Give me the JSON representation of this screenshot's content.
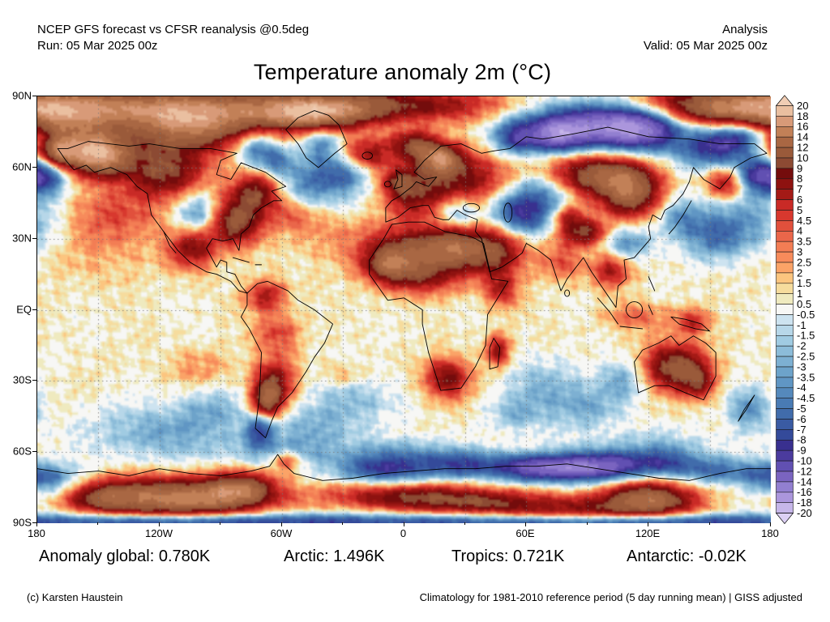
{
  "header": {
    "left_line1": "NCEP GFS forecast vs CFSR reanalysis @0.5deg",
    "left_line2": "Run: 05 Mar 2025 00z",
    "right_line1": "Analysis",
    "right_line2": "Valid: 05 Mar 2025 00z"
  },
  "title": "Temperature anomaly 2m (°C)",
  "stats": [
    "Anomaly global: 0.780K",
    "Arctic: 1.496K",
    "Tropics: 0.721K",
    "Antarctic: -0.02K"
  ],
  "footer": {
    "credit": "(c) Karsten Haustein",
    "note": "Climatology for 1981-2010 reference period (5 day running mean) | GISS adjusted"
  },
  "axes": {
    "x_ticks": [
      "180",
      "120W",
      "60W",
      "0",
      "60E",
      "120E",
      "180"
    ],
    "y_ticks": [
      "90N",
      "60N",
      "30N",
      "EQ",
      "30S",
      "60S",
      "90S"
    ]
  },
  "colorbar": {
    "tick_labels": [
      "20",
      "18",
      "16",
      "14",
      "12",
      "10",
      "9",
      "8",
      "7",
      "6",
      "5",
      "4.5",
      "4",
      "3.5",
      "3",
      "2.5",
      "2",
      "1.5",
      "1",
      "0.5",
      "-0.5",
      "-1",
      "-1.5",
      "-2",
      "-2.5",
      "-3",
      "-3.5",
      "-4",
      "-4.5",
      "-5",
      "-6",
      "-7",
      "-8",
      "-9",
      "-10",
      "-12",
      "-14",
      "-16",
      "-18",
      "-20"
    ]
  },
  "chart_data": {
    "type": "heatmap",
    "title": "Temperature anomaly 2m (°C)",
    "subtitle_model": "NCEP GFS forecast vs CFSR reanalysis @0.5deg",
    "run": "05 Mar 2025 00z",
    "valid": "05 Mar 2025 00z",
    "mode": "Analysis",
    "unit": "°C",
    "projection": "equirectangular",
    "lon_range": [
      -180,
      180
    ],
    "lat_range": [
      -90,
      90
    ],
    "x_tick_labels": [
      "180",
      "120W",
      "60W",
      "0",
      "60E",
      "120E",
      "180"
    ],
    "y_tick_labels": [
      "90N",
      "60N",
      "30N",
      "EQ",
      "30S",
      "60S",
      "90S"
    ],
    "grid": "dotted 30-degree graticule",
    "legend_position": "right colorbar with out-of-range arrows",
    "summary_stats": {
      "global_anomaly_K": 0.78,
      "arctic_anomaly_K": 1.496,
      "tropics_anomaly_K": 0.721,
      "antarctic_anomaly_K": -0.02,
      "climatology": "1981-2010 reference period (5 day running mean), GISS adjusted"
    },
    "levels": [
      -20,
      -18,
      -16,
      -14,
      -12,
      -10,
      -9,
      -8,
      -7,
      -6,
      -5,
      -4.5,
      -4,
      -3.5,
      -3,
      -2.5,
      -2,
      -1.5,
      -1,
      -0.5,
      0.5,
      1,
      1.5,
      2,
      2.5,
      3,
      3.5,
      4,
      4.5,
      5,
      6,
      7,
      8,
      9,
      10,
      12,
      14,
      16,
      18,
      20
    ],
    "colors": [
      "#dcd0f4",
      "#c6b6e9",
      "#ab96dc",
      "#927fd0",
      "#7a64c0",
      "#6150b2",
      "#4b3b9e",
      "#39308f",
      "#344a9a",
      "#3a5ba3",
      "#416cab",
      "#497bb4",
      "#5589bc",
      "#6096c4",
      "#6da3ca",
      "#7db0d2",
      "#8cbcd9",
      "#a0cbe2",
      "#b7d7e9",
      "#cde3f0",
      "#f7f7f5",
      "#efeabf",
      "#f6dc9d",
      "#fcc57f",
      "#fba367",
      "#f78b5b",
      "#f37d54",
      "#ea664a",
      "#e1503c",
      "#d8382e",
      "#c92a26",
      "#a41a16",
      "#8e1210",
      "#740c0c",
      "#8c4a33",
      "#9a5a3a",
      "#a96743",
      "#c28057",
      "#d89a78",
      "#eabfa0",
      "#f0cdb4"
    ],
    "base_anomaly": 0.6,
    "approx_field_blobs": [
      [
        -160,
        86,
        45,
        6,
        9
      ],
      [
        -80,
        86,
        45,
        6,
        8
      ],
      [
        0,
        87,
        35,
        5,
        7
      ],
      [
        160,
        86,
        35,
        6,
        9
      ],
      [
        -165,
        70,
        16,
        8,
        12
      ],
      [
        -148,
        65,
        10,
        6,
        11
      ],
      [
        -105,
        77,
        22,
        7,
        11
      ],
      [
        -117,
        59,
        14,
        8,
        9
      ],
      [
        -45,
        83,
        18,
        5,
        11
      ],
      [
        -170,
        66,
        6,
        4,
        6
      ],
      [
        -178,
        57,
        9,
        6,
        -10
      ],
      [
        173,
        58,
        8,
        5,
        -6
      ],
      [
        152,
        68,
        12,
        6,
        -8
      ],
      [
        167,
        73,
        12,
        5,
        -8
      ],
      [
        95,
        78,
        22,
        7,
        -15
      ],
      [
        75,
        74,
        9,
        5,
        -9
      ],
      [
        118,
        77,
        13,
        6,
        -10
      ],
      [
        55,
        73,
        8,
        5,
        -8
      ],
      [
        -73,
        68,
        7,
        5,
        -6
      ],
      [
        -63,
        63,
        5,
        4,
        -4
      ],
      [
        -45,
        54,
        16,
        8,
        -5
      ],
      [
        -30,
        58,
        9,
        5,
        -4
      ],
      [
        -41,
        71,
        6,
        5,
        -5
      ],
      [
        -102,
        41,
        8,
        6,
        -5.5
      ],
      [
        -83,
        37,
        9,
        7,
        10
      ],
      [
        -72,
        50,
        9,
        6,
        9
      ],
      [
        -104,
        26,
        8,
        6,
        7
      ],
      [
        -142,
        40,
        20,
        9,
        3.5
      ],
      [
        -150,
        22,
        22,
        9,
        1.2
      ],
      [
        -55,
        40,
        10,
        5,
        3
      ],
      [
        -35,
        32,
        14,
        8,
        2
      ],
      [
        15,
        58,
        15,
        9,
        5.5
      ],
      [
        35,
        55,
        14,
        8,
        5
      ],
      [
        5,
        47,
        10,
        6,
        5
      ],
      [
        18,
        64,
        7,
        4,
        10
      ],
      [
        -18,
        66,
        8,
        5,
        7
      ],
      [
        5,
        70,
        8,
        4,
        8
      ],
      [
        -3,
        54,
        6,
        4,
        6
      ],
      [
        27,
        41,
        8,
        5,
        -4.5
      ],
      [
        52,
        43,
        7,
        5,
        -5
      ],
      [
        67,
        48,
        10,
        7,
        -7
      ],
      [
        60,
        38,
        8,
        5,
        -5
      ],
      [
        5,
        24,
        16,
        8,
        10
      ],
      [
        -8,
        19,
        8,
        5,
        7
      ],
      [
        25,
        27,
        10,
        6,
        8
      ],
      [
        45,
        24,
        10,
        7,
        9
      ],
      [
        10,
        13,
        14,
        5,
        4
      ],
      [
        48,
        8,
        6,
        5,
        5
      ],
      [
        90,
        58,
        15,
        7,
        9
      ],
      [
        110,
        55,
        12,
        6,
        8
      ],
      [
        88,
        33,
        8,
        4,
        9
      ],
      [
        80,
        40,
        5,
        3,
        6
      ],
      [
        112,
        46,
        10,
        6,
        8
      ],
      [
        110,
        28,
        8,
        5,
        -4.5
      ],
      [
        136,
        39,
        8,
        6,
        -4
      ],
      [
        165,
        36,
        18,
        9,
        -4.5
      ],
      [
        152,
        30,
        9,
        6,
        -3
      ],
      [
        158,
        54,
        7,
        5,
        7
      ],
      [
        77,
        20,
        8,
        6,
        3.5
      ],
      [
        102,
        17,
        7,
        5,
        6
      ],
      [
        115,
        -3,
        12,
        4,
        3
      ],
      [
        142,
        -5,
        6,
        4,
        5
      ],
      [
        -68,
        6,
        7,
        5,
        6
      ],
      [
        -62,
        -10,
        8,
        6,
        4
      ],
      [
        -64,
        -31,
        7,
        7,
        8
      ],
      [
        -68,
        -39,
        5,
        5,
        9
      ],
      [
        -71,
        -51,
        5,
        5,
        -7
      ],
      [
        -25,
        -38,
        14,
        8,
        -3
      ],
      [
        -45,
        -50,
        12,
        6,
        -3
      ],
      [
        -30,
        -28,
        8,
        4,
        2.5
      ],
      [
        21,
        -29,
        8,
        6,
        8
      ],
      [
        46,
        -17,
        4,
        5,
        7
      ],
      [
        70,
        -33,
        15,
        8,
        -3
      ],
      [
        90,
        -42,
        12,
        6,
        -3
      ],
      [
        55,
        -45,
        10,
        5,
        -2.5
      ],
      [
        133,
        -24,
        11,
        7,
        10
      ],
      [
        145,
        -31,
        6,
        5,
        6
      ],
      [
        108,
        -30,
        8,
        6,
        -3.5
      ],
      [
        170,
        -42,
        7,
        6,
        -5
      ],
      [
        -120,
        -52,
        25,
        8,
        -3.5
      ],
      [
        -95,
        -42,
        12,
        7,
        -2.5
      ],
      [
        -100,
        -25,
        12,
        6,
        2
      ],
      [
        -60,
        -60,
        22,
        5,
        -3
      ],
      [
        0,
        -62,
        22,
        5,
        -4
      ],
      [
        120,
        -58,
        25,
        5,
        -2.5
      ],
      [
        -58,
        -64,
        5,
        3,
        6
      ],
      [
        -10,
        -68,
        16,
        4,
        -7
      ],
      [
        30,
        -66,
        14,
        4,
        -7
      ],
      [
        62,
        -67,
        12,
        4,
        -11
      ],
      [
        85,
        -67,
        12,
        4,
        -13
      ],
      [
        105,
        -66,
        10,
        4,
        -9
      ],
      [
        127,
        -65,
        10,
        4,
        -7
      ],
      [
        152,
        -68,
        12,
        4,
        -6
      ],
      [
        178,
        -70,
        10,
        4,
        -5
      ],
      [
        -170,
        -74,
        12,
        5,
        -4
      ],
      [
        -110,
        -80,
        25,
        6,
        14
      ],
      [
        -80,
        -76,
        12,
        5,
        9
      ],
      [
        -150,
        -79,
        15,
        5,
        8
      ],
      [
        40,
        -82,
        28,
        4,
        6
      ],
      [
        120,
        -80,
        16,
        5,
        12
      ],
      [
        90,
        -86,
        30,
        4,
        6
      ],
      [
        0,
        -79,
        30,
        4,
        7
      ],
      [
        0,
        -90,
        80,
        2.5,
        -7
      ],
      [
        120,
        -90,
        50,
        2.5,
        -7
      ],
      [
        -120,
        -90,
        50,
        2.5,
        -7
      ]
    ]
  }
}
